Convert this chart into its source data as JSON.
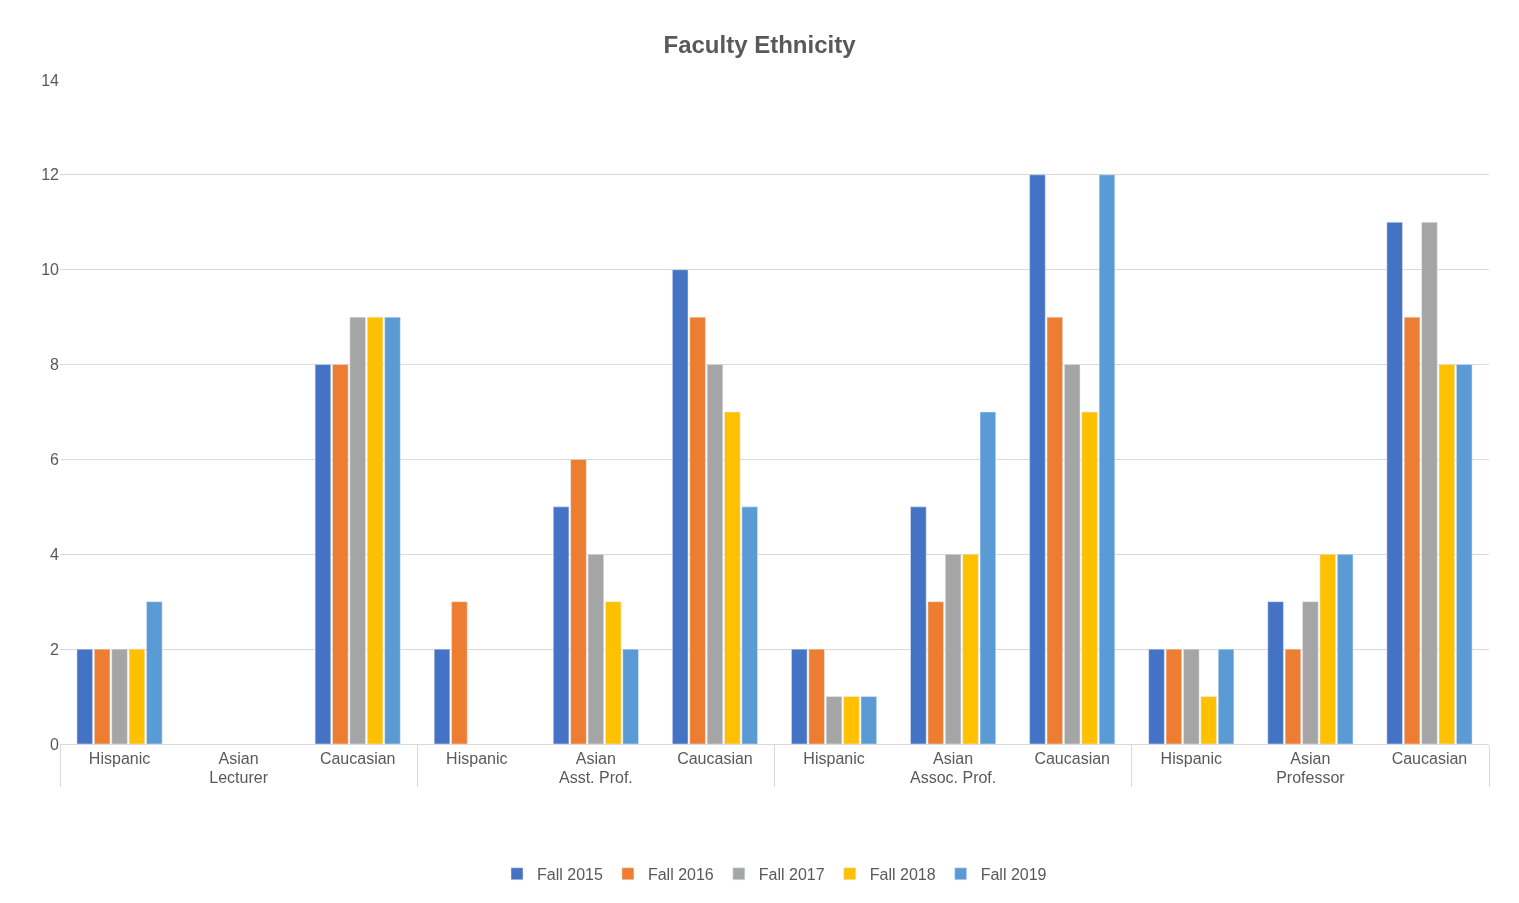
{
  "chart_data": {
    "type": "bar",
    "title": "Faculty Ethnicity",
    "categories": [
      "Hispanic",
      "Asian",
      "Caucasian",
      "Hispanic",
      "Asian",
      "Caucasian",
      "Hispanic",
      "Asian",
      "Caucasian",
      "Hispanic",
      "Asian",
      "Caucasian"
    ],
    "annotations": [
      "Lecturer",
      "Asst. Prof.",
      "Assoc. Prof.",
      "Professor"
    ],
    "series": [
      {
        "name": "Fall 2015",
        "color": "#4472c4",
        "values": [
          2,
          null,
          8,
          2,
          5,
          10,
          2,
          5,
          12,
          2,
          3,
          11
        ]
      },
      {
        "name": "Fall 2016",
        "color": "#ed7d31",
        "values": [
          2,
          null,
          8,
          3,
          6,
          9,
          2,
          3,
          9,
          2,
          2,
          9
        ]
      },
      {
        "name": "Fall 2017",
        "color": "#a5a5a5",
        "values": [
          2,
          null,
          9,
          null,
          4,
          8,
          1,
          4,
          8,
          2,
          3,
          11
        ]
      },
      {
        "name": "Fall 2018",
        "color": "#ffc000",
        "values": [
          2,
          null,
          9,
          null,
          3,
          7,
          1,
          4,
          7,
          1,
          4,
          8
        ]
      },
      {
        "name": "Fall 2019",
        "color": "#5b9bd5",
        "values": [
          3,
          null,
          9,
          null,
          2,
          5,
          1,
          7,
          12,
          2,
          4,
          8
        ]
      }
    ],
    "ylim": [
      0,
      14
    ],
    "yticks": [
      0,
      2,
      4,
      6,
      8,
      10,
      12,
      14
    ],
    "grid": "y",
    "legend": "bottom"
  }
}
